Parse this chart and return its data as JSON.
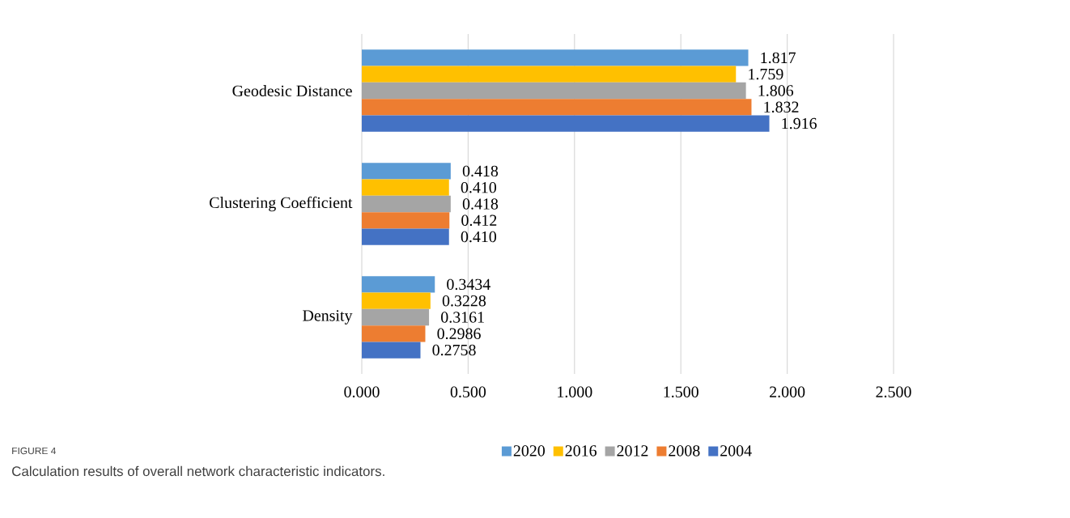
{
  "chart_data": {
    "type": "bar",
    "orientation": "horizontal",
    "categories": [
      "Geodesic Distance",
      "Clustering Coefficient",
      "Density"
    ],
    "series": [
      {
        "name": "2020",
        "color": "#5b9bd5",
        "values": [
          1.817,
          0.418,
          0.3434
        ],
        "value_labels": [
          "1.817",
          "0.418",
          "0.3434"
        ]
      },
      {
        "name": "2016",
        "color": "#ffc000",
        "values": [
          1.759,
          0.41,
          0.3228
        ],
        "value_labels": [
          "1.759",
          "0.410",
          "0.3228"
        ]
      },
      {
        "name": "2012",
        "color": "#a5a5a5",
        "values": [
          1.806,
          0.418,
          0.3161
        ],
        "value_labels": [
          "1.806",
          "0.418",
          "0.3161"
        ]
      },
      {
        "name": "2008",
        "color": "#ed7d31",
        "values": [
          1.832,
          0.412,
          0.2986
        ],
        "value_labels": [
          "1.832",
          "0.412",
          "0.2986"
        ]
      },
      {
        "name": "2004",
        "color": "#4472c4",
        "values": [
          1.916,
          0.41,
          0.2758
        ],
        "value_labels": [
          "1.916",
          "0.410",
          "0.2758"
        ]
      }
    ],
    "xlim": [
      0,
      2.5
    ],
    "xticks": [
      {
        "value": 0,
        "label": "0.000"
      },
      {
        "value": 0.5,
        "label": "0.500"
      },
      {
        "value": 1,
        "label": "1.000"
      },
      {
        "value": 1.5,
        "label": "1.500"
      },
      {
        "value": 2,
        "label": "2.000"
      },
      {
        "value": 2.5,
        "label": "2.500"
      }
    ],
    "grid": "x",
    "legend": "bottom",
    "annotations": [
      "FIGURE 4",
      "Calculation results of overall network characteristic indicators."
    ]
  }
}
